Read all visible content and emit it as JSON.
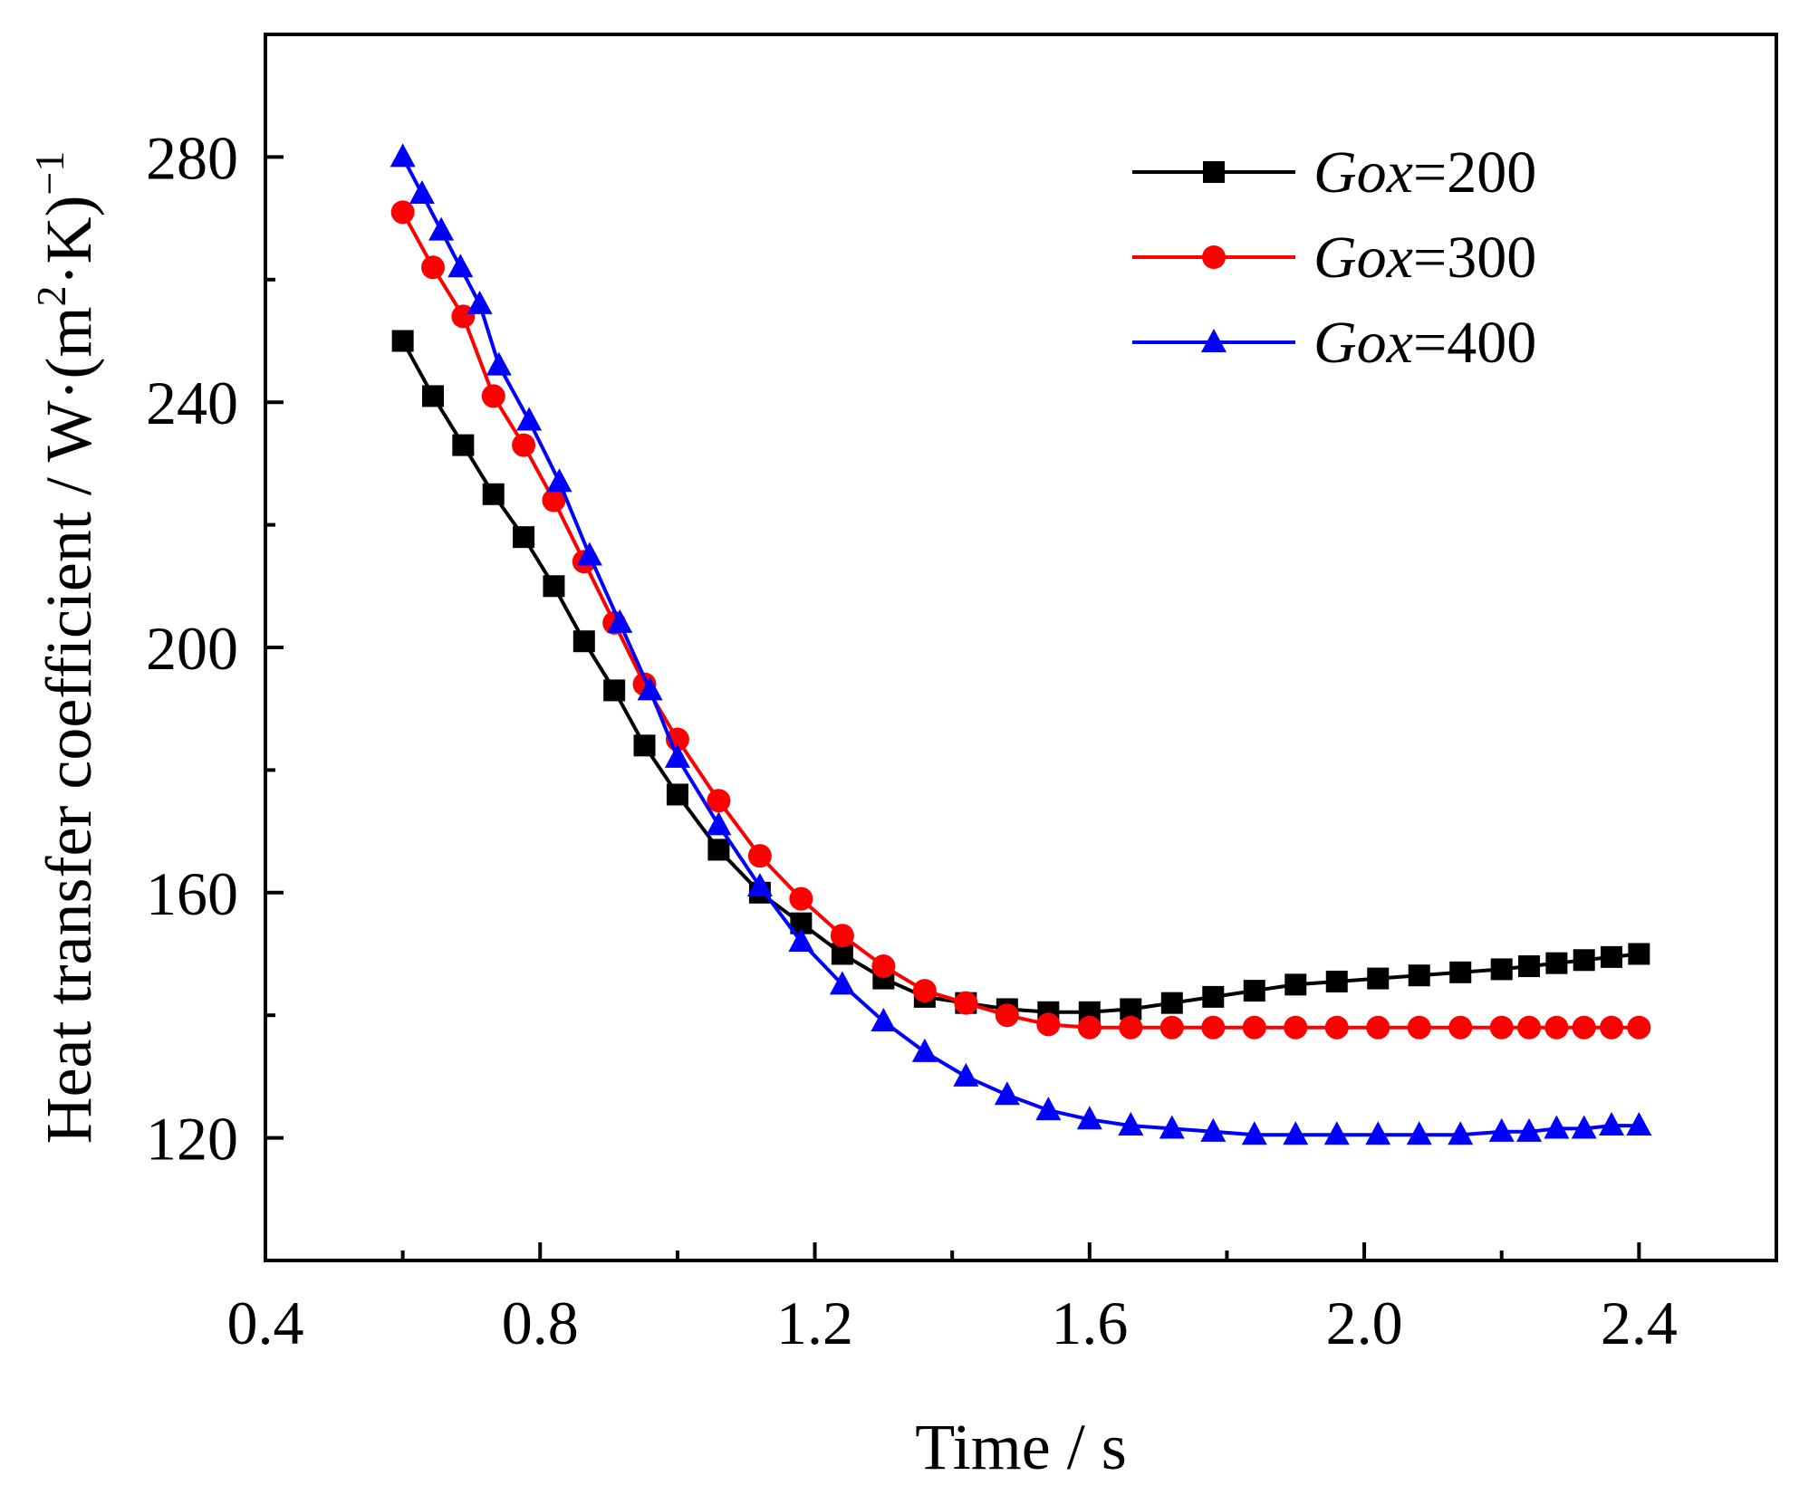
{
  "chart_data": {
    "type": "line",
    "xlabel": "Time / s",
    "ylabel_prefix": "Heat transfer coefficient / W·(m",
    "ylabel_sup": "2",
    "ylabel_mid": "·K)",
    "ylabel_exp": "−1",
    "xlim": [
      0.4,
      2.6
    ],
    "ylim": [
      100,
      300
    ],
    "xticks": [
      0.4,
      0.8,
      1.2,
      1.6,
      2.0,
      2.4
    ],
    "xtick_labels": [
      "0.4",
      "0.8",
      "1.2",
      "1.6",
      "2.0",
      "2.4"
    ],
    "yticks": [
      120,
      160,
      200,
      240,
      280
    ],
    "ytick_labels": [
      "120",
      "160",
      "200",
      "240",
      "280"
    ],
    "legend_position": "top-right",
    "series": [
      {
        "name": "Gox=200",
        "legend_italic": "Gox",
        "legend_value": "=200",
        "color": "#000000",
        "marker": "square",
        "x": [
          0.6,
          0.644,
          0.688,
          0.732,
          0.776,
          0.82,
          0.864,
          0.908,
          0.952,
          1.0,
          1.06,
          1.12,
          1.18,
          1.24,
          1.3,
          1.36,
          1.42,
          1.48,
          1.54,
          1.6,
          1.66,
          1.72,
          1.78,
          1.84,
          1.9,
          1.96,
          2.02,
          2.08,
          2.14,
          2.2,
          2.24,
          2.28,
          2.32,
          2.36,
          2.4
        ],
        "y": [
          250,
          241,
          233,
          225,
          218,
          210,
          201,
          193,
          184,
          176,
          167,
          160,
          155,
          150,
          146,
          143,
          142,
          141,
          140.5,
          140.5,
          141,
          142,
          143,
          144,
          145,
          145.5,
          146,
          146.5,
          147,
          147.5,
          148,
          148.5,
          149,
          149.5,
          150
        ]
      },
      {
        "name": "Gox=300",
        "legend_italic": "Gox",
        "legend_value": "=300",
        "color": "#ff0000",
        "marker": "circle",
        "x": [
          0.6,
          0.644,
          0.688,
          0.732,
          0.776,
          0.82,
          0.864,
          0.908,
          0.952,
          1.0,
          1.06,
          1.12,
          1.18,
          1.24,
          1.3,
          1.36,
          1.42,
          1.48,
          1.54,
          1.6,
          1.66,
          1.72,
          1.78,
          1.84,
          1.9,
          1.96,
          2.02,
          2.08,
          2.14,
          2.2,
          2.24,
          2.28,
          2.32,
          2.36,
          2.4
        ],
        "y": [
          271,
          262,
          254,
          241,
          233,
          224,
          214,
          204,
          194,
          185,
          175,
          166,
          159,
          153,
          148,
          144,
          142,
          140,
          138.5,
          138,
          138,
          138,
          138,
          138,
          138,
          138,
          138,
          138,
          138,
          138,
          138,
          138,
          138,
          138,
          138
        ]
      },
      {
        "name": "Gox=400",
        "legend_italic": "Gox",
        "legend_value": "=400",
        "color": "#0000ff",
        "marker": "triangle",
        "x": [
          0.6,
          0.628,
          0.656,
          0.684,
          0.712,
          0.74,
          0.784,
          0.828,
          0.872,
          0.916,
          0.96,
          1.0,
          1.06,
          1.12,
          1.18,
          1.24,
          1.3,
          1.36,
          1.42,
          1.48,
          1.54,
          1.6,
          1.66,
          1.72,
          1.78,
          1.84,
          1.9,
          1.96,
          2.02,
          2.08,
          2.14,
          2.2,
          2.24,
          2.28,
          2.32,
          2.36,
          2.4
        ],
        "y": [
          280,
          274,
          268,
          262,
          256,
          246,
          237,
          227,
          215,
          204,
          193,
          182,
          171,
          161,
          152,
          145,
          139,
          134,
          130,
          127,
          124.5,
          123,
          122,
          121.5,
          121,
          120.5,
          120.5,
          120.5,
          120.5,
          120.5,
          120.5,
          121,
          121,
          121.5,
          121.5,
          122,
          122
        ]
      }
    ]
  }
}
